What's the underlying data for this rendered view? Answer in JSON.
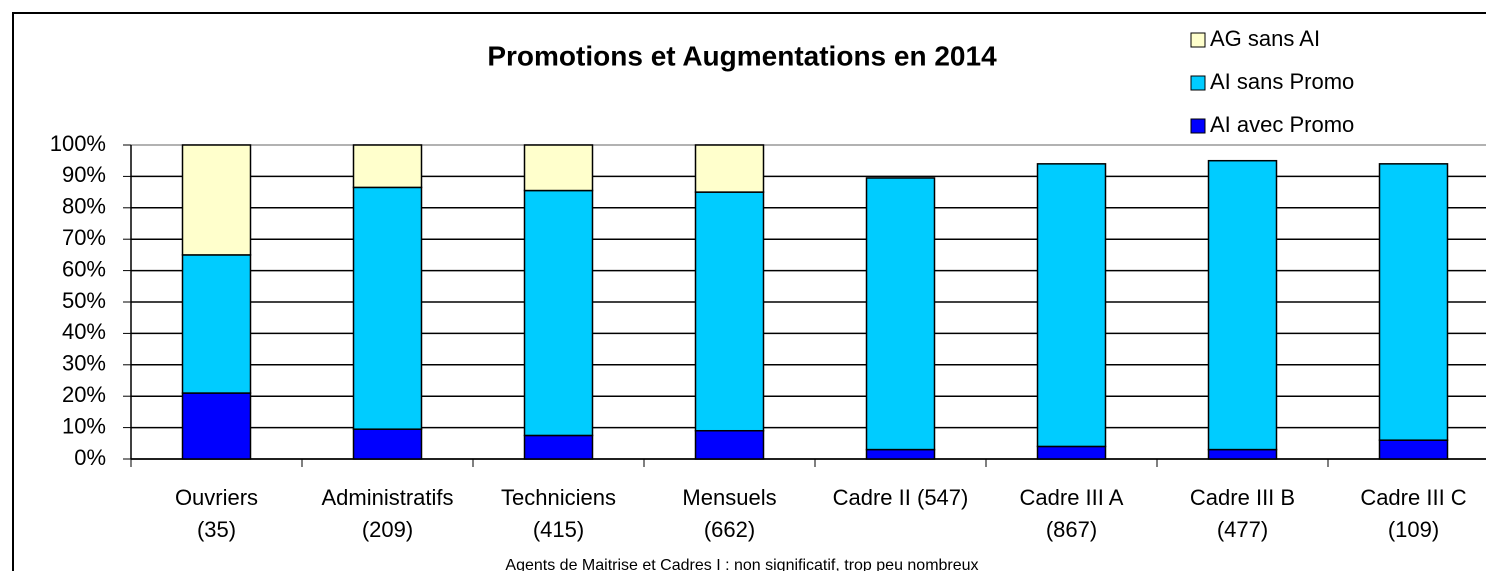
{
  "chart_data": {
    "type": "stacked_bar",
    "title": "Promotions et Augmentations en 2014",
    "categories": [
      [
        "Ouvriers",
        "(35)"
      ],
      [
        "Administratifs",
        "(209)"
      ],
      [
        "Techniciens",
        "(415)"
      ],
      [
        "Mensuels",
        "(662)"
      ],
      [
        "Cadre II (547)"
      ],
      [
        "Cadre III A",
        "(867)"
      ],
      [
        "Cadre III B",
        "(477)"
      ],
      [
        "Cadre III C",
        "(109)"
      ]
    ],
    "series": [
      {
        "name": "AI avec Promo",
        "color": "#0000ff",
        "values": [
          21,
          9.5,
          7.5,
          9,
          3,
          4,
          3,
          6
        ]
      },
      {
        "name": "AI sans Promo",
        "color": "#00ccff",
        "values": [
          44,
          77,
          78,
          76,
          86.5,
          90,
          92,
          88
        ]
      },
      {
        "name": "AG sans AI",
        "color": "#ffffcc",
        "values": [
          35,
          13.5,
          14.5,
          15,
          0,
          0,
          0,
          0
        ]
      }
    ],
    "ylim": [
      0,
      100
    ],
    "yticks": [
      {
        "value": 0,
        "label": "0%"
      },
      {
        "value": 10,
        "label": "10%"
      },
      {
        "value": 20,
        "label": "20%"
      },
      {
        "value": 30,
        "label": "30%"
      },
      {
        "value": 40,
        "label": "40%"
      },
      {
        "value": 50,
        "label": "50%"
      },
      {
        "value": 60,
        "label": "60%"
      },
      {
        "value": 70,
        "label": "70%"
      },
      {
        "value": 80,
        "label": "80%"
      },
      {
        "value": 90,
        "label": "90%"
      },
      {
        "value": 100,
        "label": "100%"
      }
    ],
    "grid": true,
    "legend": "top-right",
    "annotation": "Agents de Maitrise et Cadres I : non significatif, trop peu nombreux"
  }
}
